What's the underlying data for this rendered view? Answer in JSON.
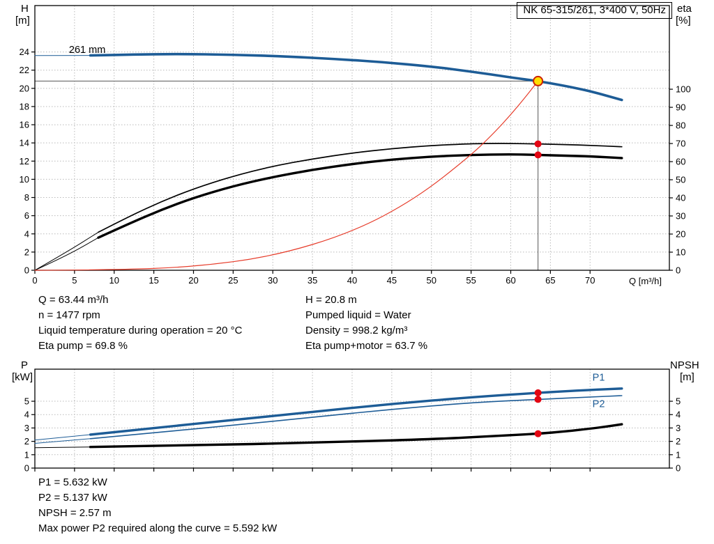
{
  "title_box": "NK 65-315/261, 3*400 V, 50Hz",
  "axes": {
    "h": "H",
    "h_unit": "[m]",
    "eta": "eta",
    "eta_unit": "[%]",
    "p": "P",
    "p_unit": "[kW]",
    "npsh": "NPSH",
    "npsh_unit": "[m]"
  },
  "info_top_left": [
    "Q = 63.44 m³/h",
    "n = 1477 rpm",
    "Liquid temperature during operation = 20 °C",
    "Eta pump = 69.8 %"
  ],
  "info_top_right": [
    "H = 20.8 m",
    "Pumped liquid = Water",
    "Density = 998.2 kg/m³",
    "Eta pump+motor = 63.7 %"
  ],
  "info_bottom": [
    "P1 = 5.632 kW",
    "P2 = 5.137 kW",
    "NPSH = 2.57 m",
    "Max power P2 required along the curve = 5.592 kW"
  ],
  "colors": {
    "curve_blue": "#1d5c96",
    "curve_black": "#000000",
    "system_red": "#e63a28",
    "dot_red": "#e30613",
    "duty_fill": "#ffdf00",
    "duty_stroke": "#cc2200",
    "grid": "#b9b9b9",
    "axis": "#000000",
    "crosshair": "#555555"
  },
  "chart_data": [
    {
      "type": "line",
      "title": "QH and efficiency curves",
      "xlabel": "Q [m³/h]",
      "ylabel_left": "H [m]",
      "ylabel_right": "eta [%]",
      "xlim": [
        0,
        80
      ],
      "xticks": [
        0,
        5,
        10,
        15,
        20,
        25,
        30,
        35,
        40,
        45,
        50,
        55,
        60,
        65,
        70
      ],
      "show_xtick_labels": true,
      "ylim_left": [
        0,
        29.1
      ],
      "yticks_left": [
        0,
        2,
        4,
        6,
        8,
        10,
        12,
        14,
        16,
        18,
        20,
        22,
        24
      ],
      "ylim_right": [
        0,
        146.2
      ],
      "yticks_right": [
        0,
        10,
        20,
        30,
        40,
        50,
        60,
        70,
        80,
        90,
        100
      ],
      "crosshair": {
        "x": 63.44,
        "y": 20.8
      },
      "series": [
        {
          "name": "eta pump+motor",
          "axis": "right",
          "color": "#000000",
          "width": 3.4,
          "thin_until": 7,
          "points": [
            [
              0,
              0
            ],
            [
              4,
              8
            ],
            [
              8,
              18
            ],
            [
              12,
              26
            ],
            [
              16,
              33.5
            ],
            [
              20,
              40
            ],
            [
              25,
              46.5
            ],
            [
              30,
              51.5
            ],
            [
              35,
              55.5
            ],
            [
              40,
              58.7
            ],
            [
              45,
              61.2
            ],
            [
              50,
              62.8
            ],
            [
              55,
              63.7
            ],
            [
              60,
              64.1
            ],
            [
              63.44,
              63.7
            ],
            [
              67,
              63.3
            ],
            [
              70,
              62.9
            ],
            [
              74,
              62
            ]
          ]
        },
        {
          "name": "eta pump",
          "axis": "right",
          "color": "#000000",
          "width": 1.7,
          "thin_until": 7,
          "points": [
            [
              0,
              0
            ],
            [
              4,
              10
            ],
            [
              8,
              21
            ],
            [
              12,
              30
            ],
            [
              16,
              38
            ],
            [
              20,
              45
            ],
            [
              25,
              52
            ],
            [
              30,
              57.5
            ],
            [
              35,
              61.5
            ],
            [
              40,
              64.8
            ],
            [
              45,
              67.2
            ],
            [
              50,
              68.9
            ],
            [
              55,
              69.9
            ],
            [
              58,
              70.1
            ],
            [
              60,
              70
            ],
            [
              63.44,
              69.8
            ],
            [
              67,
              69.4
            ],
            [
              70,
              69
            ],
            [
              74,
              68.2
            ]
          ]
        },
        {
          "name": "system curve",
          "axis": "left",
          "color": "#e63a28",
          "width": 1.2,
          "points": [
            [
              0,
              0
            ],
            [
              10,
              0.03
            ],
            [
              20,
              0.37
            ],
            [
              30,
              1.52
            ],
            [
              40,
              4.15
            ],
            [
              48,
              7.85
            ],
            [
              55,
              12.64
            ],
            [
              58,
              15.2
            ],
            [
              60,
              17.1
            ],
            [
              62,
              19.2
            ],
            [
              63.44,
              20.8
            ]
          ]
        },
        {
          "name": "261 mm",
          "axis": "left",
          "color": "#1d5c96",
          "width": 3.6,
          "thin_until": 7,
          "label": {
            "text": "261 mm",
            "x": 4.3,
            "y": 23.9,
            "color": "#000000"
          },
          "points": [
            [
              0,
              23.6
            ],
            [
              7,
              23.62
            ],
            [
              12,
              23.72
            ],
            [
              18,
              23.78
            ],
            [
              25,
              23.7
            ],
            [
              32,
              23.5
            ],
            [
              38,
              23.22
            ],
            [
              44,
              22.88
            ],
            [
              50,
              22.4
            ],
            [
              55,
              21.85
            ],
            [
              60,
              21.2
            ],
            [
              63.44,
              20.8
            ],
            [
              67,
              20.25
            ],
            [
              70,
              19.7
            ],
            [
              74,
              18.72
            ]
          ]
        }
      ],
      "markers": [
        {
          "x": 63.44,
          "y": 69.8,
          "axis": "right",
          "kind": "dot",
          "name": "eta-pump-dot"
        },
        {
          "x": 63.44,
          "y": 63.7,
          "axis": "right",
          "kind": "dot",
          "name": "eta-pump-motor-dot"
        },
        {
          "x": 63.44,
          "y": 20.8,
          "axis": "left",
          "kind": "duty",
          "name": "duty-point"
        }
      ]
    },
    {
      "type": "line",
      "title": "Power and NPSH curves",
      "xlabel": "",
      "ylabel_left": "P [kW]",
      "ylabel_right": "NPSH [m]",
      "xlim": [
        0,
        80
      ],
      "xticks": [
        0,
        5,
        10,
        15,
        20,
        25,
        30,
        35,
        40,
        45,
        50,
        55,
        60,
        65,
        70
      ],
      "show_xtick_labels": false,
      "ylim_left": [
        0,
        7.4
      ],
      "yticks_left": [
        0,
        1,
        2,
        3,
        4,
        5
      ],
      "ylim_right": [
        0,
        7.4
      ],
      "yticks_right": [
        0,
        1,
        2,
        3,
        4,
        5
      ],
      "series": [
        {
          "name": "P1",
          "axis": "left",
          "color": "#1d5c96",
          "width": 3.4,
          "thin_until": 7,
          "label": {
            "text": "P1",
            "x": 70.3,
            "y": 6.55
          },
          "points": [
            [
              0,
              2.1
            ],
            [
              7,
              2.5
            ],
            [
              15,
              3.0
            ],
            [
              25,
              3.6
            ],
            [
              35,
              4.2
            ],
            [
              45,
              4.8
            ],
            [
              55,
              5.3
            ],
            [
              63.44,
              5.632
            ],
            [
              70,
              5.85
            ],
            [
              74,
              5.95
            ]
          ]
        },
        {
          "name": "P2",
          "axis": "left",
          "color": "#1d5c96",
          "width": 1.6,
          "thin_until": 7,
          "label": {
            "text": "P2",
            "x": 70.3,
            "y": 4.55
          },
          "points": [
            [
              0,
              1.85
            ],
            [
              7,
              2.2
            ],
            [
              15,
              2.65
            ],
            [
              25,
              3.2
            ],
            [
              35,
              3.8
            ],
            [
              45,
              4.4
            ],
            [
              55,
              4.9
            ],
            [
              63.44,
              5.137
            ],
            [
              70,
              5.32
            ],
            [
              74,
              5.42
            ]
          ]
        },
        {
          "name": "NPSH",
          "axis": "right",
          "color": "#000000",
          "width": 3.4,
          "thin_until": 7,
          "points": [
            [
              0,
              1.52
            ],
            [
              7,
              1.58
            ],
            [
              20,
              1.7
            ],
            [
              35,
              1.9
            ],
            [
              50,
              2.15
            ],
            [
              58,
              2.4
            ],
            [
              63.44,
              2.57
            ],
            [
              67,
              2.75
            ],
            [
              70,
              2.95
            ],
            [
              72,
              3.1
            ],
            [
              74,
              3.28
            ]
          ]
        }
      ],
      "markers": [
        {
          "x": 63.44,
          "y": 5.632,
          "axis": "left",
          "kind": "dot",
          "name": "p1-dot"
        },
        {
          "x": 63.44,
          "y": 5.137,
          "axis": "left",
          "kind": "dot",
          "name": "p2-dot"
        },
        {
          "x": 63.44,
          "y": 2.57,
          "axis": "right",
          "kind": "dot",
          "name": "npsh-dot"
        }
      ]
    }
  ]
}
